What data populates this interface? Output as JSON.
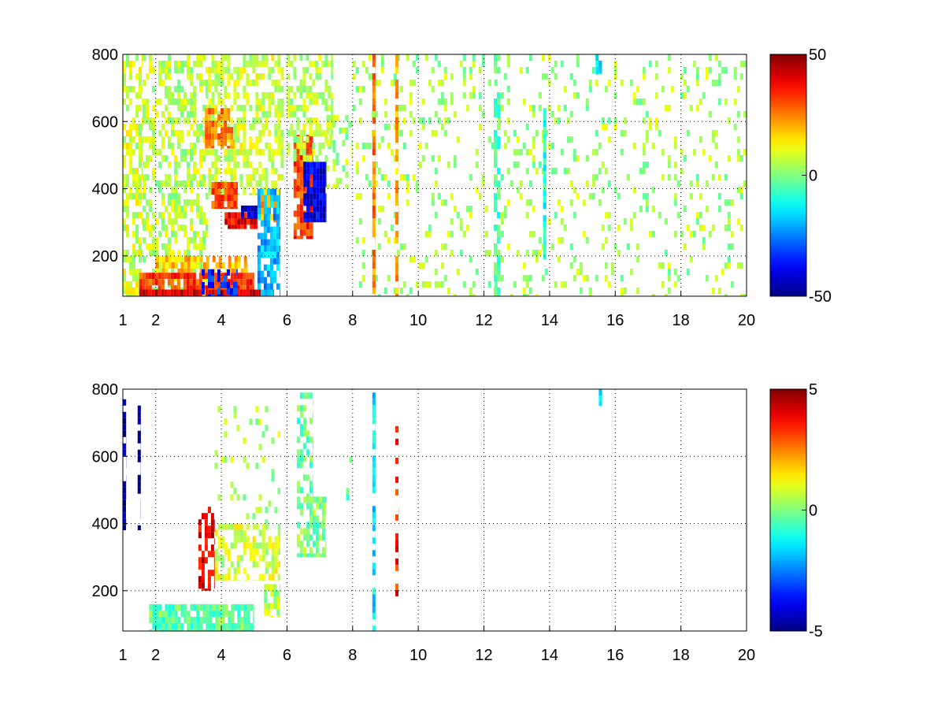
{
  "chart_data": [
    {
      "type": "heatmap",
      "title": "",
      "xlabel": "",
      "ylabel": "",
      "xlim": [
        1,
        20
      ],
      "ylim": [
        80,
        800
      ],
      "xticks": [
        1,
        2,
        4,
        6,
        8,
        10,
        12,
        14,
        16,
        18,
        20
      ],
      "yticks": [
        200,
        400,
        600,
        800
      ],
      "grid": true,
      "colormap": "jet",
      "clim": [
        -50,
        50
      ],
      "colorbar_ticks": [
        -50,
        0,
        50
      ],
      "xtick_labels": [
        "1",
        "2",
        "4",
        "6",
        "8",
        "10",
        "12",
        "14",
        "16",
        "18",
        "20"
      ],
      "ytick_labels": [
        "200",
        "400",
        "600",
        "800"
      ],
      "colorbar_labels": [
        "-50",
        "0",
        "50"
      ],
      "features": [
        {
          "x": [
            1.0,
            1.6
          ],
          "y": [
            80,
            800
          ],
          "value": 8,
          "density": 0.6
        },
        {
          "x": [
            1.6,
            3.6
          ],
          "y": [
            80,
            800
          ],
          "value": 6,
          "density": 0.45
        },
        {
          "x": [
            3.6,
            5.9
          ],
          "y": [
            380,
            800
          ],
          "value": 8,
          "density": 0.55
        },
        {
          "x": [
            3.5,
            4.4
          ],
          "y": [
            520,
            640
          ],
          "value": 25,
          "density": 0.7
        },
        {
          "x": [
            3.7,
            4.5
          ],
          "y": [
            340,
            420
          ],
          "value": 30,
          "density": 0.9
        },
        {
          "x": [
            4.1,
            5.1
          ],
          "y": [
            280,
            330
          ],
          "value": 38,
          "density": 0.95
        },
        {
          "x": [
            4.6,
            5.5
          ],
          "y": [
            310,
            350
          ],
          "value": -42,
          "density": 0.9
        },
        {
          "x": [
            5.2,
            5.8
          ],
          "y": [
            300,
            400
          ],
          "value": 20,
          "density": 0.8
        },
        {
          "x": [
            1.5,
            5.6
          ],
          "y": [
            80,
            100
          ],
          "value": 42,
          "density": 0.95
        },
        {
          "x": [
            1.5,
            5.0
          ],
          "y": [
            100,
            150
          ],
          "value": 32,
          "density": 0.9
        },
        {
          "x": [
            2.0,
            4.8
          ],
          "y": [
            150,
            200
          ],
          "value": 18,
          "density": 0.7
        },
        {
          "x": [
            3.4,
            4.5
          ],
          "y": [
            80,
            160
          ],
          "value": -35,
          "density": 0.5
        },
        {
          "x": [
            5.1,
            5.8
          ],
          "y": [
            80,
            400
          ],
          "value": -20,
          "density": 0.7
        },
        {
          "x": [
            6.2,
            6.8
          ],
          "y": [
            250,
            560
          ],
          "value": 32,
          "density": 0.8
        },
        {
          "x": [
            6.5,
            7.2
          ],
          "y": [
            300,
            480
          ],
          "value": -40,
          "density": 0.9
        },
        {
          "x": [
            6.0,
            7.4
          ],
          "y": [
            480,
            800
          ],
          "value": 6,
          "density": 0.5
        },
        {
          "x": [
            7.2,
            8.0
          ],
          "y": [
            400,
            620
          ],
          "value": 4,
          "density": 0.35
        },
        {
          "x": [
            8.0,
            20.0
          ],
          "y": [
            80,
            800
          ],
          "value": 4,
          "density": 0.14
        },
        {
          "x": [
            8.6,
            8.7
          ],
          "y": [
            80,
            800
          ],
          "value": 25,
          "density": 0.85
        },
        {
          "x": [
            9.3,
            9.4
          ],
          "y": [
            80,
            800
          ],
          "value": 20,
          "density": 0.7
        },
        {
          "x": [
            12.3,
            12.5
          ],
          "y": [
            80,
            800
          ],
          "value": -5,
          "density": 0.6
        },
        {
          "x": [
            13.8,
            13.9
          ],
          "y": [
            170,
            640
          ],
          "value": -10,
          "density": 0.9
        },
        {
          "x": [
            15.4,
            15.6
          ],
          "y": [
            740,
            800
          ],
          "value": -12,
          "density": 0.8
        }
      ]
    },
    {
      "type": "heatmap",
      "title": "",
      "xlabel": "",
      "ylabel": "",
      "xlim": [
        1,
        20
      ],
      "ylim": [
        80,
        800
      ],
      "xticks": [
        1,
        2,
        4,
        6,
        8,
        10,
        12,
        14,
        16,
        18,
        20
      ],
      "yticks": [
        200,
        400,
        600,
        800
      ],
      "grid": true,
      "colormap": "jet",
      "clim": [
        -5,
        5
      ],
      "colorbar_ticks": [
        -5,
        0,
        5
      ],
      "xtick_labels": [
        "1",
        "2",
        "4",
        "6",
        "8",
        "10",
        "12",
        "14",
        "16",
        "18",
        "20"
      ],
      "ytick_labels": [
        "200",
        "400",
        "600",
        "800"
      ],
      "colorbar_labels": [
        "-5",
        "0",
        "5"
      ],
      "features": [
        {
          "x": [
            1.0,
            1.1
          ],
          "y": [
            380,
            770
          ],
          "value": -4.5,
          "density": 0.6
        },
        {
          "x": [
            1.45,
            1.55
          ],
          "y": [
            380,
            770
          ],
          "value": -4.8,
          "density": 0.6
        },
        {
          "x": [
            1.8,
            5.0
          ],
          "y": [
            80,
            160
          ],
          "value": -0.3,
          "density": 0.85
        },
        {
          "x": [
            3.3,
            3.8
          ],
          "y": [
            200,
            450
          ],
          "value": 4.0,
          "density": 0.55
        },
        {
          "x": [
            3.8,
            5.8
          ],
          "y": [
            230,
            400
          ],
          "value": 0.8,
          "density": 0.6
        },
        {
          "x": [
            3.7,
            5.8
          ],
          "y": [
            400,
            750
          ],
          "value": 0.5,
          "density": 0.12
        },
        {
          "x": [
            5.3,
            5.8
          ],
          "y": [
            120,
            220
          ],
          "value": 0.5,
          "density": 0.6
        },
        {
          "x": [
            6.3,
            7.2
          ],
          "y": [
            300,
            480
          ],
          "value": 0.0,
          "density": 0.6
        },
        {
          "x": [
            6.3,
            6.8
          ],
          "y": [
            480,
            790
          ],
          "value": -0.3,
          "density": 0.4
        },
        {
          "x": [
            7.8,
            8.0
          ],
          "y": [
            400,
            600
          ],
          "value": -0.5,
          "density": 0.2
        },
        {
          "x": [
            8.6,
            8.7
          ],
          "y": [
            80,
            790
          ],
          "value": -1.5,
          "density": 0.75
        },
        {
          "x": [
            9.3,
            9.4
          ],
          "y": [
            90,
            690
          ],
          "value": 3.5,
          "density": 0.25
        },
        {
          "x": [
            15.5,
            15.6
          ],
          "y": [
            750,
            800
          ],
          "value": -2.0,
          "density": 0.8
        }
      ]
    }
  ]
}
